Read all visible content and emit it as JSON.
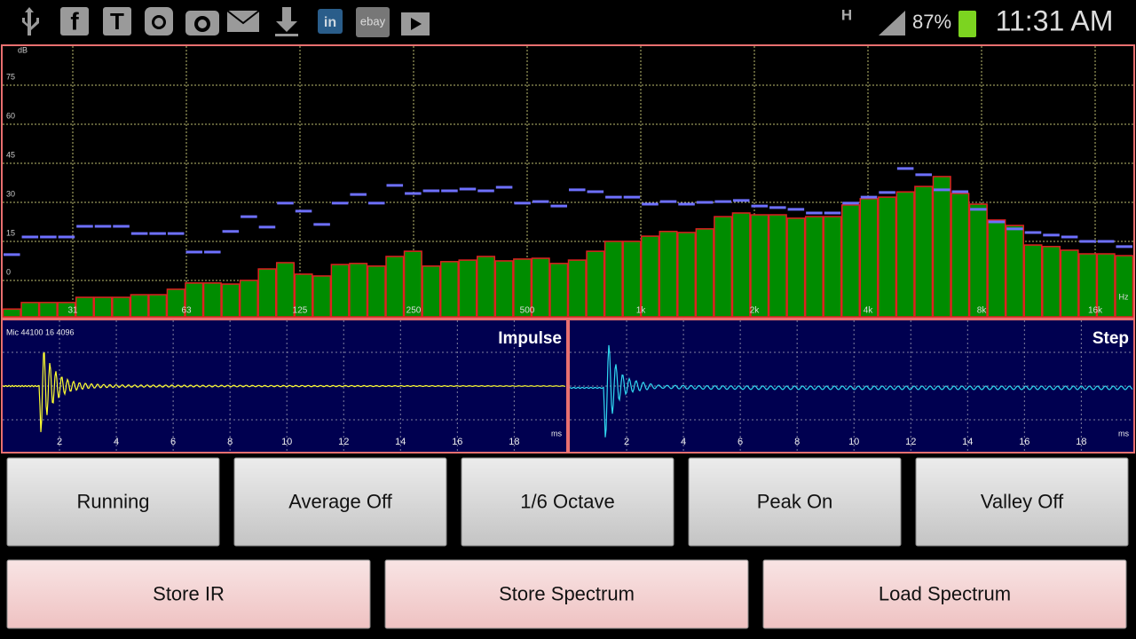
{
  "status_bar": {
    "network": "H",
    "battery": "87%",
    "time": "11:31 AM"
  },
  "spectrum": {
    "type": "bar",
    "y_unit": "dB",
    "x_unit": "Hz",
    "ylim": [
      -14,
      90
    ],
    "yticks": [
      0,
      15,
      30,
      45,
      60,
      75
    ],
    "xticks": [
      "31",
      "63",
      "125",
      "250",
      "500",
      "1k",
      "2k",
      "4k",
      "8k",
      "16k"
    ],
    "bar_color": "#008c00",
    "bar_edge_color": "#e02020",
    "peak_color": "#6e70ff",
    "values": [
      -11,
      -8.5,
      -8.5,
      -8.5,
      -6.5,
      -6.5,
      -6.5,
      -5.5,
      -5.5,
      -3.4,
      -1,
      -1,
      -1.4,
      0,
      4.4,
      6.8,
      2.4,
      1.7,
      6.1,
      6.5,
      5.5,
      9.2,
      11.2,
      5.5,
      7.2,
      7.8,
      9.2,
      7.5,
      8.2,
      8.5,
      6.5,
      7.8,
      11.2,
      15,
      15,
      17,
      18.8,
      18.4,
      19.8,
      24.5,
      25.9,
      25.2,
      25.2,
      23.9,
      24.5,
      24.5,
      29,
      31.4,
      32,
      34,
      36.1,
      39.9,
      33.4,
      29.3,
      23.2,
      21.1,
      13.6,
      13,
      11.6,
      10.2,
      10.2,
      9.5
    ],
    "peaks": [
      9.9,
      16.7,
      16.7,
      16.7,
      20.8,
      20.8,
      20.8,
      18,
      18,
      18,
      10.9,
      10.9,
      18.8,
      24.5,
      20.5,
      29.7,
      26.6,
      21.5,
      29.7,
      33,
      29.7,
      36.5,
      33.4,
      34.4,
      34.4,
      35.1,
      34.4,
      35.8,
      29.7,
      30.3,
      28.6,
      34.8,
      34.1,
      32,
      32,
      29.3,
      30.3,
      29.3,
      30,
      30.3,
      30.7,
      28.6,
      28,
      27.3,
      25.9,
      25.9,
      29.7,
      32,
      33.8,
      43,
      40.6,
      34.8,
      34.1,
      27.3,
      22.5,
      19.8,
      18.4,
      17.4,
      16.7,
      15,
      15,
      13
    ]
  },
  "panels": [
    {
      "title": "Impulse",
      "info": "Mic 44100 16 4096",
      "color": "#ffff30",
      "xlim": [
        0,
        19.8
      ],
      "xticks": [
        2,
        4,
        6,
        8,
        10,
        12,
        14,
        16,
        18
      ],
      "x_unit": "ms"
    },
    {
      "title": "Step",
      "color": "#30d8f0",
      "xlim": [
        0,
        19.8
      ],
      "xticks": [
        2,
        4,
        6,
        8,
        10,
        12,
        14,
        16,
        18
      ],
      "x_unit": "ms"
    }
  ],
  "buttons_row1": [
    "Running",
    "Average Off",
    "1/6 Octave",
    "Peak On",
    "Valley Off"
  ],
  "buttons_row2": [
    "Store IR",
    "Store Spectrum",
    "Load Spectrum"
  ]
}
